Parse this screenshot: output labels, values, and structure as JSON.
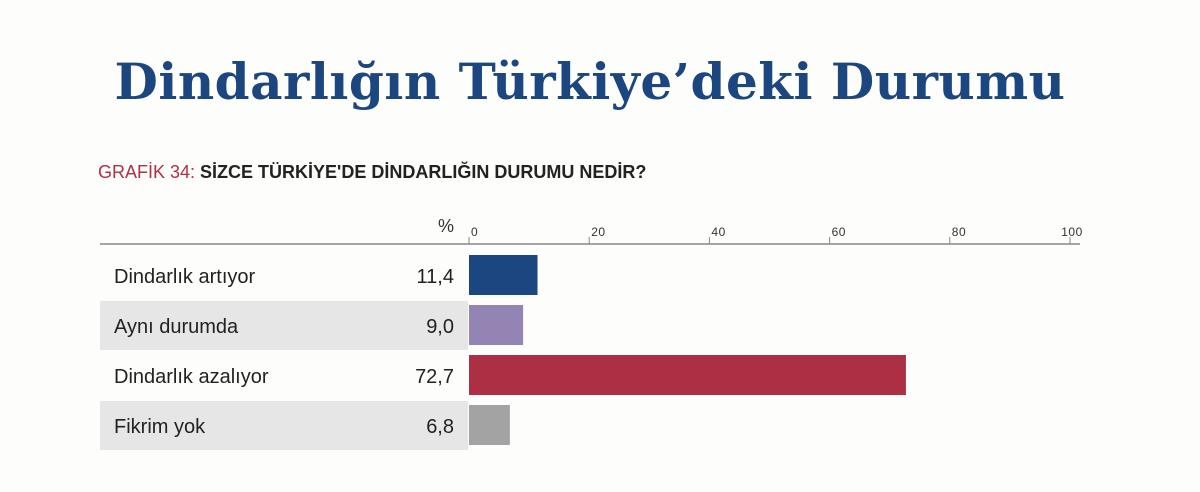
{
  "page": {
    "title": "Dindarlığın Türkiye’deki Durumu"
  },
  "chart_data": {
    "type": "bar",
    "orientation": "horizontal",
    "label_prefix": "GRAFİK 34:",
    "title": "SİZCE TÜRKİYE'DE DİNDARLIĞIN DURUMU NEDİR?",
    "value_header": "%",
    "categories": [
      "Dindarlık artıyor",
      "Aynı durumda",
      "Dindarlık azalıyor",
      "Fikrim yok"
    ],
    "values": [
      11.4,
      9.0,
      72.7,
      6.8
    ],
    "value_labels": [
      "11,4",
      "9,0",
      "72,7",
      "6,8"
    ],
    "colors": [
      "#1c4680",
      "#9484b4",
      "#ad2f43",
      "#a3a3a3"
    ],
    "xlim": [
      0,
      100
    ],
    "xticks": [
      0,
      20,
      40,
      60,
      80,
      100
    ],
    "xtick_position": "top",
    "grid": false,
    "legend": "none",
    "row_shading": "alternating",
    "colors_ui": {
      "title": "#1c4680",
      "prefix": "#b03045",
      "row_shade": "#e6e6e6"
    }
  }
}
